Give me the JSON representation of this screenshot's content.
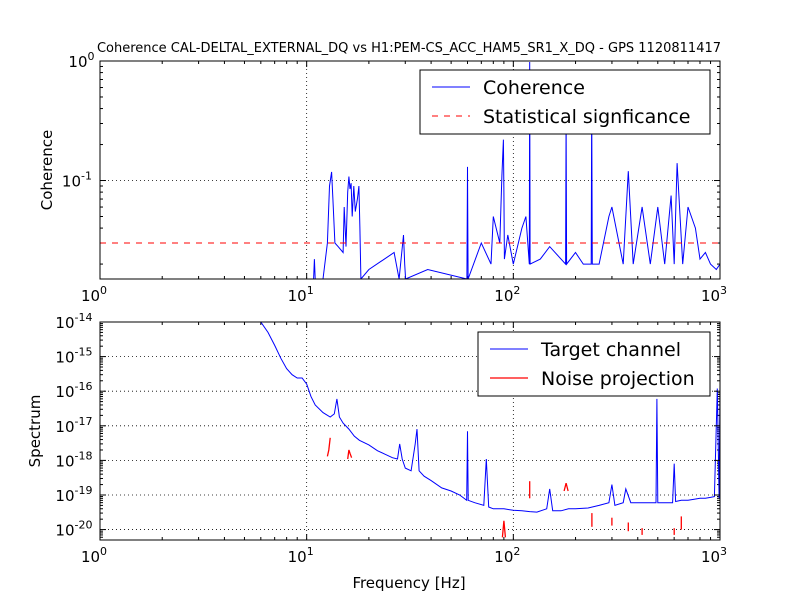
{
  "chart_data": [
    {
      "type": "line",
      "title": "Coherence CAL-DELTAL_EXTERNAL_DQ vs H1:PEM-CS_ACC_HAM5_SR1_X_DQ - GPS 1120811417",
      "xlabel": "",
      "ylabel": "Coherence",
      "xscale": "log",
      "yscale": "log",
      "xlim": [
        1,
        1000
      ],
      "ylim": [
        0.015,
        1
      ],
      "grid": true,
      "legend_position": "top-right",
      "x_tick_labels": [
        {
          "base": "10",
          "exp": "0"
        },
        {
          "base": "10",
          "exp": "1"
        },
        {
          "base": "10",
          "exp": "2"
        },
        {
          "base": "10",
          "exp": "3"
        }
      ],
      "x_tick_values": [
        1,
        10,
        100,
        1000
      ],
      "y_tick_labels": [
        {
          "base": "10",
          "exp": "-1"
        },
        {
          "base": "10",
          "exp": "0"
        }
      ],
      "y_tick_values": [
        0.1,
        1
      ],
      "series": [
        {
          "name": "Coherence",
          "color": "#0000ff",
          "style": "solid",
          "x": [
            10.5,
            10.8,
            10.9,
            11.0,
            12.0,
            12.6,
            12.9,
            13.2,
            13.4,
            13.7,
            14.2,
            15.0,
            15.2,
            15.5,
            15.8,
            16.0,
            16.2,
            16.4,
            16.6,
            16.9,
            17.2,
            17.6,
            17.9,
            18.1,
            18.3,
            20.0,
            26.5,
            28.0,
            29.4,
            29.8,
            30.1,
            38.5,
            59.6,
            60.0,
            60.4,
            70.0,
            78.0,
            80.0,
            86.0,
            88.0,
            89.5,
            90.0,
            90.5,
            94.0,
            100.0,
            110.0,
            115.0,
            119.5,
            120.0,
            120.5,
            135.0,
            150.0,
            179.0,
            180.0,
            181.0,
            200.0,
            218.0,
            238.0,
            239.5,
            241.0,
            260.0,
            290.0,
            300.0,
            340.0,
            360.0,
            380.0,
            420.0,
            460.0,
            500.0,
            540.0,
            580.0,
            600.0,
            620.0,
            660.0,
            700.0,
            760.0,
            800.0,
            850.0,
            900.0,
            960.0,
            1000.0
          ],
          "y": [
            0.015,
            0.015,
            0.022,
            0.015,
            0.015,
            0.03,
            0.09,
            0.118,
            0.07,
            0.03,
            0.028,
            0.025,
            0.06,
            0.028,
            0.08,
            0.108,
            0.085,
            0.095,
            0.05,
            0.09,
            0.055,
            0.07,
            0.09,
            0.04,
            0.015,
            0.018,
            0.025,
            0.015,
            0.035,
            0.02,
            0.015,
            0.018,
            0.015,
            0.13,
            0.015,
            0.03,
            0.02,
            0.05,
            0.03,
            0.11,
            0.22,
            0.08,
            0.022,
            0.035,
            0.02,
            0.04,
            0.05,
            0.02,
            0.98,
            0.02,
            0.022,
            0.028,
            0.02,
            0.35,
            0.02,
            0.025,
            0.02,
            0.02,
            0.45,
            0.02,
            0.02,
            0.05,
            0.06,
            0.02,
            0.12,
            0.02,
            0.06,
            0.02,
            0.06,
            0.02,
            0.075,
            0.02,
            0.14,
            0.02,
            0.06,
            0.04,
            0.022,
            0.025,
            0.02,
            0.018,
            0.02
          ]
        },
        {
          "name": "Statistical signficance",
          "color": "#ff0000",
          "style": "dashed",
          "x": [
            1,
            1000
          ],
          "y": [
            0.03,
            0.03
          ]
        }
      ]
    },
    {
      "type": "line",
      "title": "",
      "xlabel": "Frequency [Hz]",
      "ylabel": "Spectrum",
      "xscale": "log",
      "yscale": "log",
      "xlim": [
        1,
        1000
      ],
      "ylim": [
        5e-21,
        1e-14
      ],
      "grid": true,
      "legend_position": "top-right",
      "x_tick_labels": [
        {
          "base": "10",
          "exp": "0"
        },
        {
          "base": "10",
          "exp": "1"
        },
        {
          "base": "10",
          "exp": "2"
        },
        {
          "base": "10",
          "exp": "3"
        }
      ],
      "x_tick_values": [
        1,
        10,
        100,
        1000
      ],
      "y_tick_labels": [
        {
          "base": "10",
          "exp": "-20"
        },
        {
          "base": "10",
          "exp": "-19"
        },
        {
          "base": "10",
          "exp": "-18"
        },
        {
          "base": "10",
          "exp": "-17"
        },
        {
          "base": "10",
          "exp": "-16"
        },
        {
          "base": "10",
          "exp": "-15"
        },
        {
          "base": "10",
          "exp": "-14"
        }
      ],
      "y_tick_values": [
        1e-20,
        1e-19,
        1e-18,
        1e-17,
        1e-16,
        1e-15,
        1e-14
      ],
      "series": [
        {
          "name": "Target channel",
          "color": "#0000ff",
          "style": "solid",
          "x": [
            6.0,
            6.5,
            7.0,
            7.5,
            8.0,
            8.5,
            9.0,
            9.5,
            10.0,
            10.5,
            11.0,
            12.0,
            13.0,
            13.6,
            14.0,
            14.4,
            15.0,
            16.0,
            17.0,
            18.0,
            20.0,
            22.0,
            24.0,
            26.0,
            27.5,
            28.2,
            29.0,
            30.0,
            32.0,
            33.5,
            34.2,
            35.0,
            37.0,
            40.0,
            45.0,
            50.0,
            55.0,
            59.5,
            60.0,
            60.5,
            65.0,
            72.0,
            74.0,
            76.0,
            80.0,
            90.0,
            100.0,
            110.0,
            120.0,
            130.0,
            145.0,
            150.0,
            155.0,
            170.0,
            185.0,
            200.0,
            230.0,
            260.0,
            290.0,
            300.0,
            310.0,
            340.0,
            350.0,
            370.0,
            400.0,
            450.0,
            490.0,
            495.0,
            500.0,
            510.0,
            560.0,
            590.0,
            600.0,
            610.0,
            650.0,
            700.0,
            750.0,
            800.0,
            850.0,
            900.0,
            940.0,
            970.0,
            990.0,
            1000.0
          ],
          "y": [
            1e-14,
            5e-15,
            2.1e-15,
            9e-16,
            4.5e-16,
            3e-16,
            2.4e-16,
            2.4e-16,
            1.6e-16,
            7e-17,
            4e-17,
            2.4e-17,
            1.8e-17,
            2.2e-17,
            6e-17,
            1.8e-17,
            1.2e-17,
            8e-18,
            5e-18,
            3.8e-18,
            2.8e-18,
            1.9e-18,
            1.5e-18,
            1.2e-18,
            1.1e-18,
            3e-18,
            1.1e-18,
            6e-19,
            5e-19,
            3e-18,
            8e-18,
            5e-19,
            3.5e-19,
            2.6e-19,
            1.6e-19,
            1.3e-19,
            1e-19,
            7e-20,
            7e-18,
            7e-20,
            6e-20,
            5e-20,
            1.1e-18,
            4.5e-20,
            4e-20,
            4e-20,
            3.6e-20,
            3.5e-20,
            3.3e-20,
            3.2e-20,
            4e-20,
            1.5e-19,
            3.5e-20,
            3.5e-20,
            4e-20,
            4e-20,
            4.2e-20,
            5e-20,
            6e-20,
            2e-19,
            5e-20,
            6e-20,
            1.5e-19,
            6e-20,
            6e-20,
            6e-20,
            6e-20,
            6e-17,
            6e-20,
            6e-20,
            6e-20,
            6e-20,
            8e-19,
            6.5e-20,
            7e-20,
            7e-20,
            7.5e-20,
            8e-20,
            8e-20,
            8.5e-20,
            9e-20,
            1.2e-16,
            8e-20,
            1.5e-16
          ]
        },
        {
          "name": "Noise projection",
          "color": "#ff0000",
          "style": "solid",
          "segments": [
            {
              "x": [
                12.6,
                12.8,
                13.0
              ],
              "y": [
                1.3e-18,
                2e-18,
                4.5e-18
              ]
            },
            {
              "x": [
                15.8,
                16.0,
                16.2,
                16.5
              ],
              "y": [
                1.1e-18,
                2e-18,
                1.6e-18,
                1.2e-18
              ]
            },
            {
              "x": [
                88.5,
                90.0,
                91.5
              ],
              "y": [
                6e-21,
                1.8e-20,
                6e-21
              ]
            },
            {
              "x": [
                120.0,
                120.0
              ],
              "y": [
                8e-20,
                2.5e-19
              ]
            },
            {
              "x": [
                176.0,
                180.0,
                184.0
              ],
              "y": [
                1.3e-19,
                2.2e-19,
                1.3e-19
              ]
            },
            {
              "x": [
                240.0,
                240.0
              ],
              "y": [
                1.2e-20,
                3e-20
              ]
            },
            {
              "x": [
                300.0,
                300.0
              ],
              "y": [
                1.3e-20,
                2.2e-20
              ]
            },
            {
              "x": [
                360.0,
                360.0
              ],
              "y": [
                9e-21,
                1.6e-20
              ]
            },
            {
              "x": [
                420.0,
                420.0
              ],
              "y": [
                7e-21,
                1.1e-20
              ]
            },
            {
              "x": [
                600.0,
                600.0
              ],
              "y": [
                7e-21,
                1.1e-20
              ]
            },
            {
              "x": [
                650.0,
                650.0
              ],
              "y": [
                1e-20,
                2.4e-20
              ]
            }
          ]
        }
      ]
    }
  ]
}
